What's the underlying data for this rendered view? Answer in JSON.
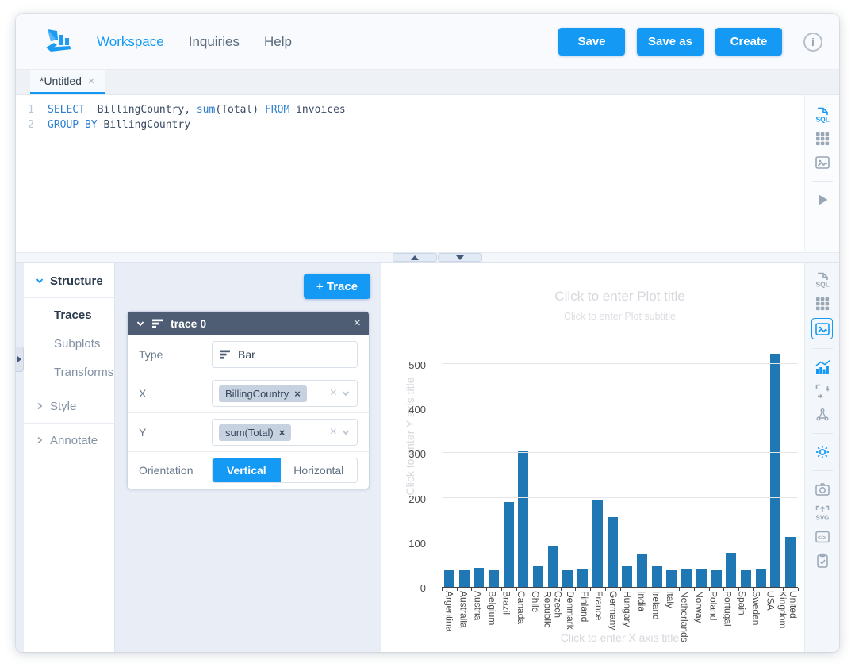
{
  "colors": {
    "accent": "#149af5",
    "bar": "#1f77b4",
    "trace_header": "#4e5d73",
    "panel_bg": "#e9edf6"
  },
  "nav": {
    "logo_icon": "falcon-logo",
    "links": [
      {
        "label": "Workspace",
        "active": true
      },
      {
        "label": "Inquiries",
        "active": false
      },
      {
        "label": "Help",
        "active": false
      }
    ],
    "buttons": [
      {
        "label": "Save"
      },
      {
        "label": "Save as"
      },
      {
        "label": "Create"
      }
    ],
    "info_icon": "i"
  },
  "tabs": [
    {
      "label": "*Untitled",
      "close": "×",
      "active": true
    }
  ],
  "sql_editor": {
    "lines": [
      {
        "num": "1",
        "kw1": "SELECT",
        "txt1": "  BillingCountry, ",
        "kw2": "sum",
        "txt2": "(Total) ",
        "kw3": "FROM",
        "txt3": " invoices"
      },
      {
        "num": "2",
        "kw1": "GROUP BY",
        "txt1": " BillingCountry"
      }
    ]
  },
  "editor_toolbar": {
    "icons": [
      "sql-file",
      "results-table",
      "chart-image",
      "run-query"
    ]
  },
  "chart_toolbar": {
    "icons": [
      "sql-file",
      "results-table",
      "chart-image",
      "chart-trend",
      "resize-axes",
      "vector-select",
      "settings-gear",
      "snapshot-camera",
      "export-svg",
      "embed-code",
      "copy-clipboard"
    ]
  },
  "structure_panel": {
    "items": [
      {
        "label": "Structure",
        "expanded": true
      },
      {
        "label": "Traces",
        "active": true
      },
      {
        "label": "Subplots"
      },
      {
        "label": "Transforms"
      },
      {
        "label": "Style",
        "expanded": false
      },
      {
        "label": "Annotate",
        "expanded": false
      }
    ]
  },
  "trace_editor": {
    "add_trace_label": "+ Trace",
    "trace_title": "trace 0",
    "close": "×",
    "type_label": "Type",
    "type_value": "Bar",
    "x_label": "X",
    "x_value": "BillingCountry",
    "y_label": "Y",
    "y_value": "sum(Total)",
    "chip_remove": "×",
    "clear": "×",
    "orientation_label": "Orientation",
    "orientation_options": [
      {
        "label": "Vertical",
        "selected": true
      },
      {
        "label": "Horizontal",
        "selected": false
      }
    ]
  },
  "plot": {
    "title_placeholder": "Click to enter Plot title",
    "subtitle_placeholder": "Click to enter Plot subtitle",
    "x_axis_placeholder": "Click to enter X axis title",
    "y_axis_placeholder": "Click to enter Y axis title"
  },
  "chart_data": {
    "type": "bar",
    "title": "",
    "xlabel": "",
    "ylabel": "",
    "categories": [
      "Argentina",
      "Australia",
      "Austria",
      "Belgium",
      "Brazil",
      "Canada",
      "Chile",
      "Czech Republic",
      "Denmark",
      "Finland",
      "France",
      "Germany",
      "Hungary",
      "India",
      "Ireland",
      "Italy",
      "Netherlands",
      "Norway",
      "Poland",
      "Portugal",
      "Spain",
      "Sweden",
      "USA",
      "United Kingdom"
    ],
    "values": [
      37.62,
      37.62,
      42.62,
      37.62,
      190.1,
      303.96,
      46.62,
      90.24,
      37.62,
      41.62,
      195.1,
      156.48,
      45.62,
      75.26,
      45.62,
      37.62,
      40.62,
      39.62,
      37.62,
      77.24,
      37.62,
      38.62,
      523.06,
      112.86
    ],
    "yticks": [
      0,
      100,
      200,
      300,
      400,
      500
    ],
    "ylim": [
      0,
      553
    ],
    "bar_color": "#1f77b4",
    "grid": true,
    "legend": false
  }
}
